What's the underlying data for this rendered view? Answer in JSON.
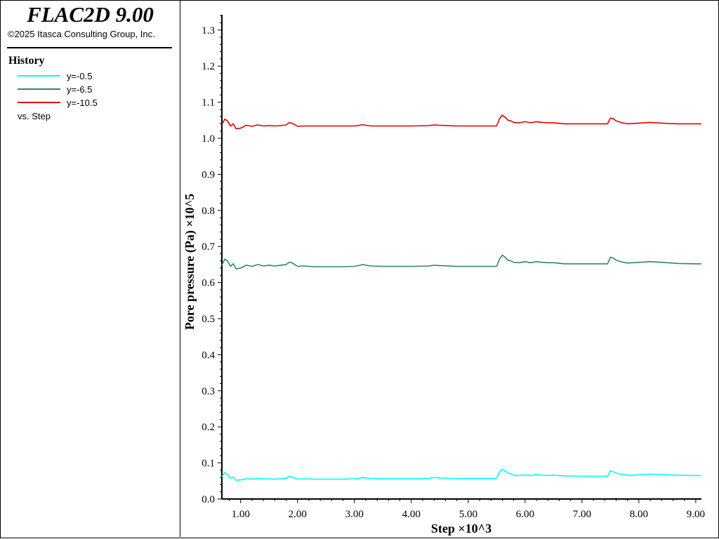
{
  "app": {
    "title": "FLAC2D 9.00",
    "copyright": "©2025 Itasca Consulting Group, Inc."
  },
  "legend": {
    "heading": "History",
    "vs_label": "vs. Step"
  },
  "colors": {
    "cyan": "#00ffff",
    "green": "#2e8b57",
    "red": "#e00000",
    "axis": "#000000"
  },
  "chart_data": {
    "type": "line",
    "xlabel": "Step ×10^3",
    "ylabel": "Pore pressure (Pa) ×10^5",
    "xlim": [
      0.67,
      9.1
    ],
    "ylim": [
      0.0,
      1.35
    ],
    "x_tick_labels": [
      "1.00",
      "2.00",
      "3.00",
      "4.00",
      "5.00",
      "6.00",
      "7.00",
      "8.00",
      "9.00"
    ],
    "y_tick_labels": [
      "0.0",
      "0.1",
      "0.2",
      "0.3",
      "0.4",
      "0.5",
      "0.6",
      "0.7",
      "0.8",
      "0.9",
      "1.0",
      "1.1",
      "1.2",
      "1.3"
    ],
    "grid": false,
    "series": [
      {
        "name": "y=-0.5",
        "color_key": "cyan",
        "x": [
          0.67,
          0.72,
          0.77,
          0.82,
          0.87,
          0.92,
          1.0,
          1.1,
          1.2,
          1.3,
          1.4,
          1.5,
          1.6,
          1.7,
          1.8,
          1.85,
          1.9,
          1.95,
          2.0,
          2.1,
          2.3,
          2.5,
          2.8,
          3.0,
          3.1,
          3.15,
          3.2,
          3.3,
          3.5,
          3.8,
          4.0,
          4.3,
          4.4,
          4.5,
          4.8,
          5.0,
          5.3,
          5.5,
          5.55,
          5.6,
          5.65,
          5.7,
          5.75,
          5.8,
          5.9,
          6.0,
          6.1,
          6.2,
          6.3,
          6.4,
          6.5,
          6.7,
          7.0,
          7.2,
          7.45,
          7.5,
          7.55,
          7.6,
          7.7,
          7.8,
          7.9,
          8.0,
          8.2,
          8.3,
          8.5,
          8.7,
          9.0,
          9.1
        ],
        "values": [
          0.062,
          0.073,
          0.068,
          0.058,
          0.061,
          0.052,
          0.053,
          0.056,
          0.055,
          0.057,
          0.055,
          0.056,
          0.055,
          0.056,
          0.057,
          0.062,
          0.061,
          0.058,
          0.055,
          0.056,
          0.055,
          0.055,
          0.055,
          0.056,
          0.058,
          0.06,
          0.058,
          0.057,
          0.056,
          0.056,
          0.056,
          0.057,
          0.06,
          0.058,
          0.057,
          0.057,
          0.057,
          0.057,
          0.075,
          0.082,
          0.078,
          0.072,
          0.07,
          0.066,
          0.065,
          0.067,
          0.065,
          0.068,
          0.066,
          0.065,
          0.066,
          0.064,
          0.063,
          0.063,
          0.063,
          0.078,
          0.076,
          0.072,
          0.068,
          0.066,
          0.066,
          0.067,
          0.069,
          0.068,
          0.067,
          0.066,
          0.065,
          0.065
        ]
      },
      {
        "name": "y=-6.5",
        "color_key": "green",
        "x": [
          0.67,
          0.72,
          0.77,
          0.82,
          0.87,
          0.92,
          1.0,
          1.1,
          1.2,
          1.3,
          1.4,
          1.5,
          1.6,
          1.7,
          1.8,
          1.85,
          1.9,
          1.95,
          2.0,
          2.1,
          2.3,
          2.5,
          2.8,
          3.0,
          3.1,
          3.15,
          3.2,
          3.3,
          3.5,
          3.8,
          4.0,
          4.3,
          4.4,
          4.5,
          4.8,
          5.0,
          5.3,
          5.5,
          5.55,
          5.6,
          5.65,
          5.7,
          5.75,
          5.8,
          5.9,
          6.0,
          6.1,
          6.2,
          6.3,
          6.4,
          6.5,
          6.7,
          7.0,
          7.2,
          7.45,
          7.5,
          7.55,
          7.6,
          7.7,
          7.8,
          7.9,
          8.0,
          8.2,
          8.3,
          8.5,
          8.7,
          9.0,
          9.1
        ],
        "values": [
          0.648,
          0.665,
          0.66,
          0.645,
          0.652,
          0.638,
          0.64,
          0.648,
          0.645,
          0.65,
          0.646,
          0.648,
          0.646,
          0.648,
          0.65,
          0.656,
          0.655,
          0.65,
          0.645,
          0.646,
          0.644,
          0.644,
          0.644,
          0.645,
          0.648,
          0.65,
          0.648,
          0.646,
          0.645,
          0.645,
          0.645,
          0.646,
          0.648,
          0.647,
          0.645,
          0.645,
          0.645,
          0.645,
          0.665,
          0.676,
          0.67,
          0.662,
          0.66,
          0.656,
          0.655,
          0.658,
          0.655,
          0.658,
          0.656,
          0.655,
          0.655,
          0.652,
          0.652,
          0.652,
          0.652,
          0.67,
          0.668,
          0.662,
          0.657,
          0.654,
          0.655,
          0.656,
          0.658,
          0.657,
          0.655,
          0.653,
          0.652,
          0.652
        ]
      },
      {
        "name": "y=-10.5",
        "color_key": "red",
        "x": [
          0.67,
          0.72,
          0.77,
          0.82,
          0.87,
          0.92,
          1.0,
          1.1,
          1.2,
          1.3,
          1.4,
          1.5,
          1.6,
          1.7,
          1.8,
          1.85,
          1.9,
          1.95,
          2.0,
          2.1,
          2.3,
          2.5,
          2.8,
          3.0,
          3.1,
          3.15,
          3.2,
          3.3,
          3.5,
          3.8,
          4.0,
          4.3,
          4.4,
          4.5,
          4.8,
          5.0,
          5.3,
          5.5,
          5.55,
          5.6,
          5.65,
          5.7,
          5.75,
          5.8,
          5.9,
          6.0,
          6.1,
          6.2,
          6.3,
          6.4,
          6.5,
          6.7,
          7.0,
          7.2,
          7.45,
          7.5,
          7.55,
          7.6,
          7.7,
          7.8,
          7.9,
          8.0,
          8.2,
          8.3,
          8.5,
          8.7,
          9.0,
          9.1
        ],
        "values": [
          1.038,
          1.053,
          1.048,
          1.034,
          1.04,
          1.026,
          1.028,
          1.036,
          1.033,
          1.037,
          1.034,
          1.035,
          1.034,
          1.035,
          1.037,
          1.043,
          1.042,
          1.038,
          1.033,
          1.034,
          1.034,
          1.034,
          1.034,
          1.034,
          1.036,
          1.038,
          1.036,
          1.034,
          1.034,
          1.034,
          1.034,
          1.035,
          1.037,
          1.036,
          1.034,
          1.034,
          1.034,
          1.034,
          1.054,
          1.064,
          1.058,
          1.05,
          1.048,
          1.044,
          1.043,
          1.046,
          1.043,
          1.046,
          1.044,
          1.043,
          1.043,
          1.04,
          1.04,
          1.04,
          1.04,
          1.056,
          1.054,
          1.048,
          1.043,
          1.04,
          1.041,
          1.042,
          1.044,
          1.043,
          1.041,
          1.04,
          1.04,
          1.04
        ]
      }
    ]
  }
}
